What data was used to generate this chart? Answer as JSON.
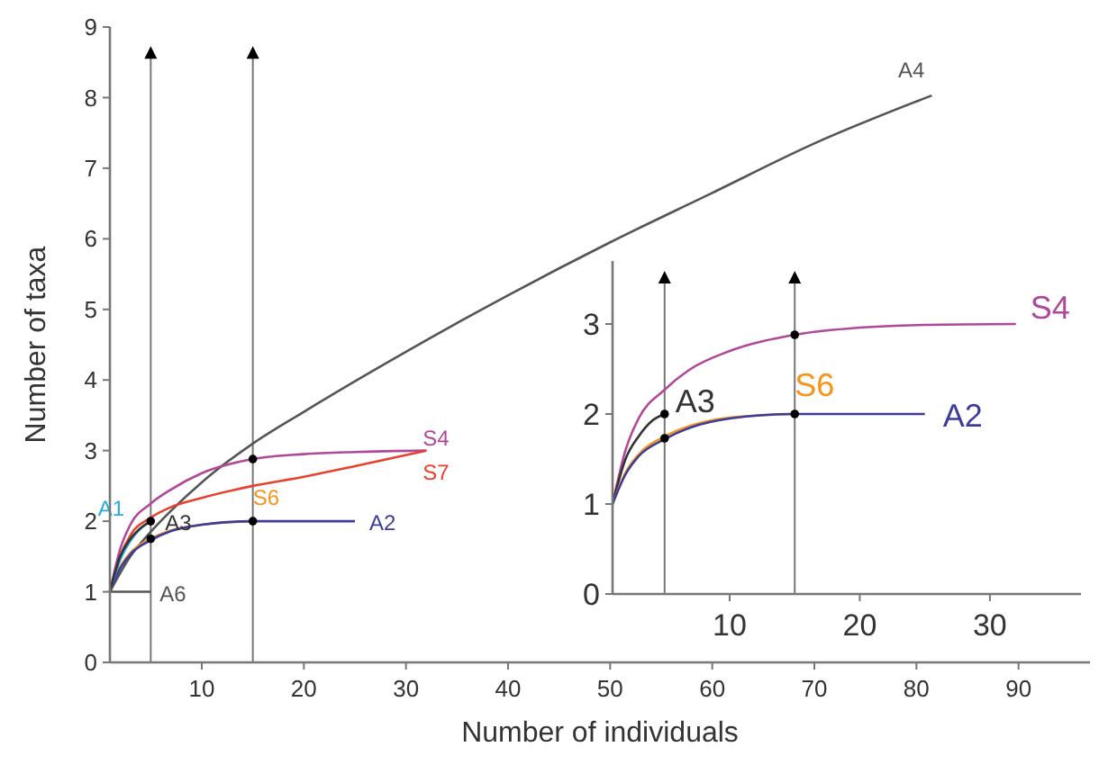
{
  "chart_data": [
    {
      "type": "line",
      "xlabel": "Number of individuals",
      "ylabel": "Number of taxa",
      "xlim": [
        1,
        97
      ],
      "ylim": [
        0,
        9
      ],
      "xticks": [
        10,
        20,
        30,
        40,
        50,
        60,
        70,
        80,
        90
      ],
      "yticks": [
        0,
        1,
        2,
        3,
        4,
        5,
        6,
        7,
        8,
        9
      ],
      "grid": false,
      "marker": "none",
      "series": [
        {
          "name": "A4",
          "color": "#555555",
          "x": [
            1,
            3,
            5,
            7,
            10,
            15,
            20,
            30,
            40,
            50,
            60,
            70,
            81.5
          ],
          "values": [
            1,
            1.5,
            1.85,
            2.15,
            2.55,
            3.1,
            3.55,
            4.4,
            5.2,
            5.95,
            6.65,
            7.35,
            8.03
          ]
        },
        {
          "name": "S4",
          "color": "#b0489a",
          "x": [
            1,
            2,
            3,
            5,
            7,
            10,
            15,
            20,
            25,
            32
          ],
          "values": [
            1,
            1.6,
            1.95,
            2.25,
            2.45,
            2.68,
            2.88,
            2.95,
            2.98,
            3.0
          ]
        },
        {
          "name": "S7",
          "color": "#e8412f",
          "x": [
            1,
            2,
            3,
            5,
            7,
            10,
            15,
            20,
            25,
            32
          ],
          "values": [
            1,
            1.5,
            1.8,
            2.05,
            2.2,
            2.33,
            2.5,
            2.63,
            2.78,
            3.0
          ]
        },
        {
          "name": "S6",
          "color": "#f7941d",
          "x": [
            1,
            2,
            3,
            5,
            7,
            10,
            15
          ],
          "values": [
            1,
            1.35,
            1.55,
            1.75,
            1.87,
            1.95,
            2.0
          ]
        },
        {
          "name": "A2",
          "color": "#3c3c9c",
          "x": [
            1,
            2,
            3,
            5,
            7,
            10,
            15,
            20,
            25
          ],
          "values": [
            1,
            1.33,
            1.53,
            1.73,
            1.86,
            1.95,
            2.0,
            2.0,
            2.0
          ]
        },
        {
          "name": "A1",
          "color": "#29abe2",
          "x": [
            1,
            2,
            3,
            4,
            5
          ],
          "values": [
            1,
            1.45,
            1.72,
            1.9,
            2.0
          ]
        },
        {
          "name": "A3",
          "color": "#333333",
          "x": [
            1,
            2,
            3,
            4,
            5
          ],
          "values": [
            1,
            1.5,
            1.75,
            1.9,
            2.0
          ]
        },
        {
          "name": "A6",
          "color": "#555555",
          "x": [
            1,
            5
          ],
          "values": [
            1,
            1
          ]
        },
        {
          "type": "scatter",
          "marker": "circle",
          "color": "#000000",
          "x": [
            5,
            5,
            15,
            15
          ],
          "values": [
            2.0,
            1.75,
            2.88,
            2.0
          ]
        }
      ],
      "ref_lines": [
        {
          "axis": "x",
          "value": 5,
          "color": "#777777"
        },
        {
          "axis": "x",
          "value": 15,
          "color": "#777777"
        }
      ]
    },
    {
      "type": "line",
      "xlim": [
        1,
        37
      ],
      "ylim": [
        0,
        3.7
      ],
      "xticks": [
        10,
        20,
        30
      ],
      "yticks": [
        0,
        1,
        2,
        3
      ],
      "grid": false,
      "marker": "none",
      "series": [
        {
          "name": "S4",
          "color": "#b0489a",
          "x": [
            1,
            2,
            3,
            5,
            7,
            10,
            15,
            20,
            25,
            32
          ],
          "values": [
            1,
            1.6,
            1.95,
            2.27,
            2.5,
            2.7,
            2.88,
            2.96,
            2.99,
            3.0
          ]
        },
        {
          "name": "A3",
          "color": "#333333",
          "x": [
            1,
            2,
            3,
            4,
            5
          ],
          "values": [
            1,
            1.5,
            1.75,
            1.92,
            2.0
          ]
        },
        {
          "name": "S6",
          "color": "#f7941d",
          "x": [
            1,
            2,
            3,
            5,
            7,
            10,
            15
          ],
          "values": [
            1,
            1.35,
            1.55,
            1.75,
            1.87,
            1.96,
            2.0
          ]
        },
        {
          "name": "A2",
          "color": "#3c3c9c",
          "x": [
            1,
            2,
            3,
            5,
            7,
            10,
            15,
            20,
            25
          ],
          "values": [
            1,
            1.33,
            1.53,
            1.72,
            1.85,
            1.95,
            2.0,
            2.0,
            2.0
          ]
        },
        {
          "type": "scatter",
          "marker": "circle",
          "color": "#000000",
          "x": [
            5,
            5,
            15,
            15
          ],
          "values": [
            2.0,
            1.73,
            2.88,
            2.0
          ]
        }
      ],
      "ref_lines": [
        {
          "axis": "x",
          "value": 5,
          "color": "#777777"
        },
        {
          "axis": "x",
          "value": 15,
          "color": "#777777"
        }
      ]
    }
  ]
}
